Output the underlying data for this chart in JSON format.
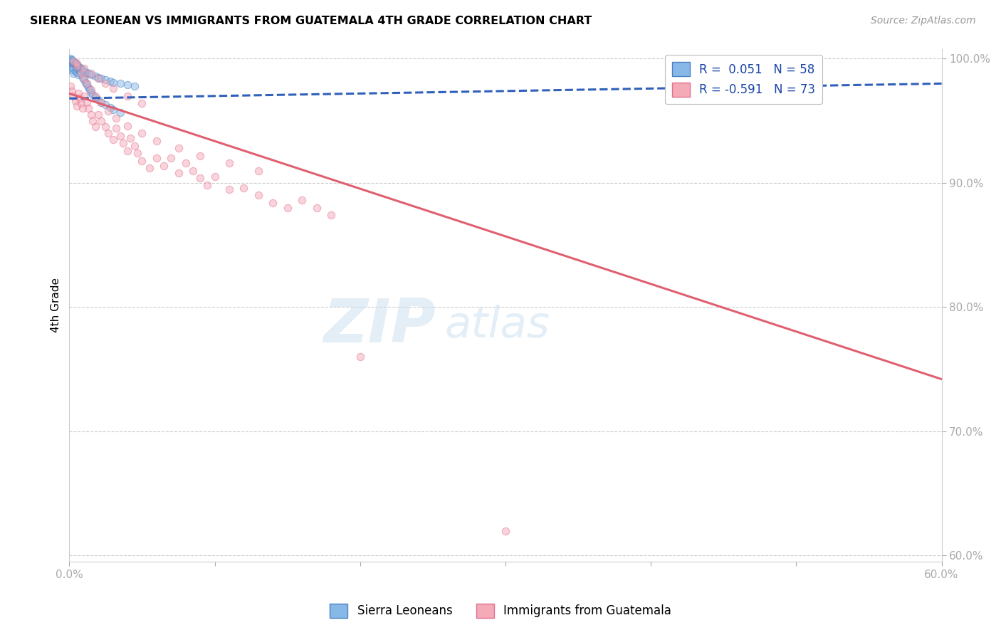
{
  "title": "SIERRA LEONEAN VS IMMIGRANTS FROM GUATEMALA 4TH GRADE CORRELATION CHART",
  "source": "Source: ZipAtlas.com",
  "ylabel": "4th Grade",
  "x_min": 0.0,
  "x_max": 0.6,
  "y_min": 0.595,
  "y_max": 1.008,
  "x_ticks": [
    0.0,
    0.1,
    0.2,
    0.3,
    0.4,
    0.5,
    0.6
  ],
  "x_tick_labels": [
    "0.0%",
    "",
    "",
    "",
    "",
    "",
    "60.0%"
  ],
  "y_ticks": [
    0.6,
    0.7,
    0.8,
    0.9,
    1.0
  ],
  "y_tick_labels": [
    "60.0%",
    "70.0%",
    "80.0%",
    "90.0%",
    "100.0%"
  ],
  "legend_label_blue": "R =  0.051   N = 58",
  "legend_label_pink": "R = -0.591   N = 73",
  "blue_scatter_x": [
    0.001,
    0.001,
    0.001,
    0.002,
    0.002,
    0.002,
    0.003,
    0.003,
    0.003,
    0.004,
    0.004,
    0.005,
    0.005,
    0.006,
    0.006,
    0.007,
    0.008,
    0.009,
    0.01,
    0.011,
    0.012,
    0.013,
    0.014,
    0.015,
    0.016,
    0.018,
    0.02,
    0.022,
    0.025,
    0.028,
    0.03,
    0.035,
    0.001,
    0.002,
    0.003,
    0.004,
    0.005,
    0.006,
    0.007,
    0.008,
    0.009,
    0.01,
    0.012,
    0.013,
    0.015,
    0.018,
    0.02,
    0.022,
    0.025,
    0.028,
    0.03,
    0.035,
    0.04,
    0.045,
    0.001,
    0.002,
    0.003,
    0.004
  ],
  "blue_scatter_y": [
    0.998,
    0.996,
    0.994,
    0.997,
    0.993,
    0.991,
    0.996,
    0.992,
    0.988,
    0.995,
    0.99,
    0.993,
    0.989,
    0.991,
    0.987,
    0.99,
    0.988,
    0.985,
    0.983,
    0.981,
    0.979,
    0.977,
    0.975,
    0.973,
    0.971,
    0.969,
    0.967,
    0.965,
    0.963,
    0.961,
    0.959,
    0.957,
    0.999,
    0.998,
    0.997,
    0.996,
    0.995,
    0.994,
    0.993,
    0.992,
    0.991,
    0.99,
    0.989,
    0.988,
    0.987,
    0.986,
    0.985,
    0.984,
    0.983,
    0.982,
    0.981,
    0.98,
    0.979,
    0.978,
    1.0,
    0.999,
    0.998,
    0.997
  ],
  "pink_scatter_x": [
    0.001,
    0.002,
    0.003,
    0.004,
    0.005,
    0.006,
    0.007,
    0.008,
    0.009,
    0.01,
    0.012,
    0.013,
    0.015,
    0.016,
    0.018,
    0.02,
    0.022,
    0.025,
    0.027,
    0.03,
    0.032,
    0.035,
    0.037,
    0.04,
    0.042,
    0.045,
    0.047,
    0.05,
    0.055,
    0.06,
    0.065,
    0.07,
    0.075,
    0.08,
    0.085,
    0.09,
    0.095,
    0.1,
    0.11,
    0.12,
    0.13,
    0.14,
    0.15,
    0.16,
    0.17,
    0.18,
    0.003,
    0.005,
    0.008,
    0.01,
    0.012,
    0.015,
    0.018,
    0.022,
    0.027,
    0.032,
    0.04,
    0.05,
    0.06,
    0.075,
    0.09,
    0.11,
    0.13,
    0.005,
    0.01,
    0.015,
    0.02,
    0.025,
    0.03,
    0.04,
    0.05,
    0.2,
    0.3
  ],
  "pink_scatter_y": [
    0.978,
    0.974,
    0.97,
    0.966,
    0.962,
    0.972,
    0.968,
    0.964,
    0.96,
    0.97,
    0.965,
    0.96,
    0.955,
    0.95,
    0.945,
    0.955,
    0.95,
    0.945,
    0.94,
    0.935,
    0.944,
    0.938,
    0.932,
    0.926,
    0.936,
    0.93,
    0.924,
    0.918,
    0.912,
    0.92,
    0.914,
    0.92,
    0.908,
    0.916,
    0.91,
    0.904,
    0.898,
    0.905,
    0.895,
    0.896,
    0.89,
    0.884,
    0.88,
    0.886,
    0.88,
    0.874,
    0.998,
    0.994,
    0.988,
    0.984,
    0.98,
    0.975,
    0.97,
    0.965,
    0.958,
    0.952,
    0.946,
    0.94,
    0.934,
    0.928,
    0.922,
    0.916,
    0.91,
    0.996,
    0.992,
    0.988,
    0.984,
    0.98,
    0.976,
    0.97,
    0.964,
    0.76,
    0.62
  ],
  "blue_line_x": [
    0.0,
    0.6
  ],
  "blue_line_y": [
    0.968,
    0.98
  ],
  "pink_line_x": [
    0.0,
    0.6
  ],
  "pink_line_y": [
    0.972,
    0.742
  ],
  "watermark_line1": "ZIP",
  "watermark_line2": "atlas",
  "background_color": "#ffffff",
  "scatter_alpha": 0.5,
  "scatter_size": 55,
  "blue_color": "#87b8e8",
  "blue_edge": "#4a80c0",
  "pink_color": "#f5aab8",
  "pink_edge": "#e07090",
  "blue_line_color": "#3060bb",
  "pink_line_color": "#e06070"
}
